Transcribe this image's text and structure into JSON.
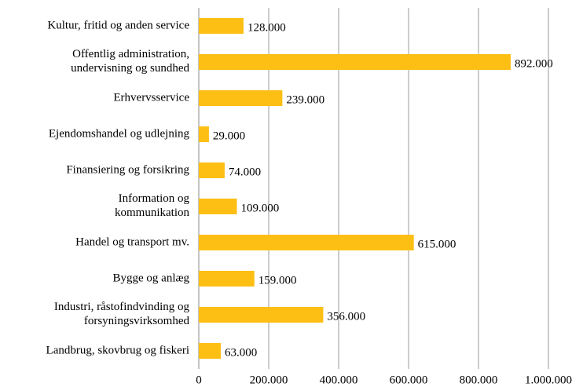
{
  "chart_data": {
    "type": "barh",
    "categories": [
      "Kultur, fritid og anden service",
      "Offentlig administration,\nundervisning og sundhed",
      "Erhvervsservice",
      "Ejendomshandel og udlejning",
      "Finansiering og forsikring",
      "Information og\nkommunikation",
      "Handel og transport mv.",
      "Bygge og anlæg",
      "Industri, råstofindvinding og\nforsyningsvirksomhed",
      "Landbrug, skovbrug og fiskeri"
    ],
    "values": [
      128000,
      892000,
      239000,
      29000,
      74000,
      109000,
      615000,
      159000,
      356000,
      63000
    ],
    "value_labels": [
      "128.000",
      "892.000",
      "239.000",
      "29.000",
      "74.000",
      "109.000",
      "615.000",
      "159.000",
      "356.000",
      "63.000"
    ],
    "color": "#fdbf14",
    "xlim": [
      0,
      1000000
    ],
    "xticks": [
      0,
      {
        "value": 200000,
        "label": "200.000"
      },
      {
        "value": 400000,
        "label": "400.000"
      },
      {
        "value": 600000,
        "label": "600.000"
      },
      {
        "value": 800000,
        "label": "800.000"
      },
      {
        "value": 1000000,
        "label": "1.000.000"
      }
    ],
    "grid": true
  }
}
